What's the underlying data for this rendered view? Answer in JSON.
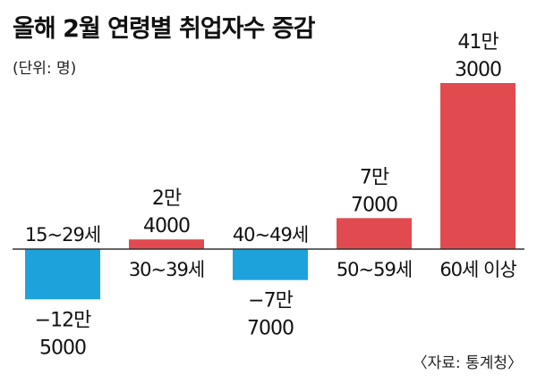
{
  "header": {
    "title": "올해 2월 연령별 취업자수 증감",
    "unit": "(단위: 명)"
  },
  "footer": {
    "source": "〈자료: 통계청〉"
  },
  "colors": {
    "positive": "#e14b50",
    "negative": "#1ea2dc",
    "axis": "#333333"
  },
  "chart_data": {
    "type": "bar",
    "title": "올해 2월 연령별 취업자수 증감",
    "unit": "(단위: 명)",
    "categories": [
      "15~29세",
      "30~39세",
      "40~49세",
      "50~59세",
      "60세 이상"
    ],
    "values": [
      -125000,
      24000,
      -77000,
      77000,
      413000
    ],
    "value_labels": [
      [
        "−12만",
        "5000"
      ],
      [
        "2만",
        "4000"
      ],
      [
        "−7만",
        "7000"
      ],
      [
        "7만",
        "7000"
      ],
      [
        "41만",
        "3000"
      ]
    ],
    "ylim": [
      -130000,
      420000
    ],
    "grid": false,
    "legend": "none"
  }
}
